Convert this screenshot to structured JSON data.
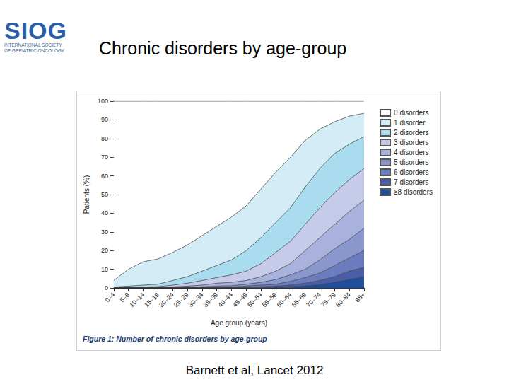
{
  "slide": {
    "logo": "SIOG",
    "logo_subtitle": [
      "INTERNATIONAL SOCIETY",
      "OF GERIATRIC ONCOLOGY"
    ],
    "title": "Chronic disorders by age-group",
    "source": "Barnett et al, Lancet 2012"
  },
  "chart_data": {
    "type": "area",
    "title": "Figure 1: Number of chronic disorders by age-group",
    "x_label": "Age group (years)",
    "y_label": "Patients (%)",
    "categories": [
      "0–4",
      "5–9",
      "10–14",
      "15–19",
      "20–24",
      "25–29",
      "30–34",
      "35–39",
      "40–44",
      "45–49",
      "50–54",
      "55–59",
      "60–64",
      "65–69",
      "70–74",
      "75–79",
      "80–84",
      "85+"
    ],
    "stacked": true,
    "grid": false,
    "legend": "right",
    "ylim": [
      0,
      100
    ],
    "yticks": [
      0,
      10,
      20,
      30,
      40,
      50,
      60,
      70,
      80,
      90,
      100
    ],
    "series": [
      {
        "name": "0 disorders",
        "color": "#ffffff",
        "values": [
          96,
          90,
          86,
          84.5,
          81,
          77,
          72,
          67,
          62,
          56,
          47,
          38,
          30,
          21,
          15,
          11,
          8,
          6.5
        ]
      },
      {
        "name": "1 disorder",
        "color": "#d3ecf6",
        "values": [
          3.5,
          9,
          12.5,
          13.5,
          15,
          17,
          19,
          21,
          23,
          24,
          26,
          27,
          27,
          25,
          21,
          17,
          15,
          12.5
        ]
      },
      {
        "name": "2 disorders",
        "color": "#a9dcee",
        "values": [
          0.5,
          0.7,
          1,
          1.3,
          2.5,
          3.5,
          5,
          6.5,
          8,
          11,
          14,
          16,
          18,
          20,
          21,
          21,
          19,
          17
        ]
      },
      {
        "name": "3 disorders",
        "color": "#c6cbe9",
        "values": [
          0,
          0.3,
          0.3,
          0.4,
          0.9,
          1.5,
          2.5,
          3,
          4,
          5,
          7,
          10,
          12,
          14,
          16,
          17,
          17,
          17
        ]
      },
      {
        "name": "4 disorders",
        "color": "#a8b2dc",
        "values": [
          0,
          0,
          0.2,
          0.2,
          0.4,
          0.6,
          0.9,
          1.5,
          1.8,
          2,
          3,
          4.5,
          6,
          10,
          12,
          13,
          15,
          15
        ]
      },
      {
        "name": "5 disorders",
        "color": "#8a97cd",
        "values": [
          0,
          0,
          0,
          0.1,
          0.1,
          0.2,
          0.3,
          0.6,
          0.7,
          1,
          1.5,
          2.5,
          3.5,
          4.5,
          7,
          9,
          10,
          12
        ]
      },
      {
        "name": "6 disorders",
        "color": "#6b7cbf",
        "values": [
          0,
          0,
          0,
          0,
          0.1,
          0.2,
          0.2,
          0.2,
          0.3,
          0.6,
          0.9,
          1,
          2,
          3,
          4,
          6,
          7,
          9
        ]
      },
      {
        "name": "7 disorders",
        "color": "#4a5ea8",
        "values": [
          0,
          0,
          0,
          0,
          0,
          0,
          0.1,
          0.2,
          0.1,
          0.2,
          0.3,
          0.6,
          0.8,
          1.5,
          2.2,
          3,
          4.5,
          5
        ]
      },
      {
        "name": "≥8 disorders",
        "color": "#1d4f9c",
        "values": [
          0,
          0,
          0,
          0,
          0,
          0,
          0,
          0,
          0.1,
          0.2,
          0.3,
          0.4,
          0.7,
          1,
          1.8,
          3,
          4.5,
          6
        ]
      }
    ]
  }
}
